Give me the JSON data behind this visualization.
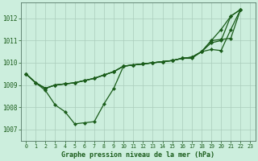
{
  "background_color": "#cceedd",
  "grid_color": "#aaccbb",
  "line_color": "#1a5c1a",
  "title": "Graphe pression niveau de la mer (hPa)",
  "xlim": [
    -0.5,
    23.5
  ],
  "ylim": [
    1006.5,
    1012.7
  ],
  "yticks": [
    1007,
    1008,
    1009,
    1010,
    1011,
    1012
  ],
  "xticks": [
    0,
    1,
    2,
    3,
    4,
    5,
    6,
    7,
    8,
    9,
    10,
    11,
    12,
    13,
    14,
    15,
    16,
    17,
    18,
    19,
    20,
    21,
    22,
    23
  ],
  "s1_x": [
    0,
    1,
    2,
    3,
    4,
    5,
    6,
    7,
    8,
    9,
    10,
    11,
    12,
    13,
    14,
    15,
    16,
    17,
    18,
    19,
    20,
    21,
    22
  ],
  "s1_y": [
    1009.5,
    1009.1,
    1008.85,
    1009.0,
    1009.05,
    1009.1,
    1009.2,
    1009.3,
    1009.45,
    1009.6,
    1009.85,
    1009.9,
    1009.95,
    1010.0,
    1010.05,
    1010.1,
    1010.2,
    1010.25,
    1010.5,
    1011.0,
    1011.05,
    1011.1,
    1012.4
  ],
  "s2_x": [
    0,
    1,
    2,
    3,
    4,
    5,
    6,
    7,
    8,
    9,
    10,
    11,
    12,
    13,
    14,
    15,
    16,
    17,
    18,
    19,
    20,
    21,
    22
  ],
  "s2_y": [
    1009.5,
    1009.1,
    1008.85,
    1009.0,
    1009.05,
    1009.1,
    1009.2,
    1009.3,
    1009.45,
    1009.6,
    1009.85,
    1009.9,
    1009.95,
    1010.0,
    1010.05,
    1010.1,
    1010.2,
    1010.25,
    1010.5,
    1010.6,
    1010.55,
    1011.5,
    1012.4
  ],
  "s3_x": [
    0,
    1,
    2,
    3,
    4,
    5,
    6,
    7,
    8,
    9,
    10,
    11,
    12,
    13,
    14,
    15,
    16,
    17,
    18,
    19,
    20,
    21,
    22
  ],
  "s3_y": [
    1009.5,
    1009.1,
    1008.85,
    1009.0,
    1009.05,
    1009.1,
    1009.2,
    1009.3,
    1009.45,
    1009.6,
    1009.85,
    1009.9,
    1009.95,
    1010.0,
    1010.05,
    1010.1,
    1010.2,
    1010.25,
    1010.5,
    1011.0,
    1011.5,
    1012.1,
    1012.4
  ],
  "s4_x": [
    0,
    1,
    2,
    3,
    4,
    5,
    6,
    7,
    8,
    9,
    10,
    11,
    12,
    13,
    14,
    15,
    16,
    17,
    18,
    19,
    20,
    21,
    22
  ],
  "s4_y": [
    1009.5,
    1009.1,
    1008.75,
    1008.1,
    1007.8,
    1007.25,
    1007.3,
    1007.35,
    1008.15,
    1008.85,
    1009.85,
    1009.9,
    1009.95,
    1010.0,
    1010.05,
    1010.1,
    1010.2,
    1010.2,
    1010.5,
    1010.9,
    1011.0,
    1012.1,
    1012.4
  ],
  "marker": "D",
  "markersize": 2.2,
  "linewidth": 0.9
}
